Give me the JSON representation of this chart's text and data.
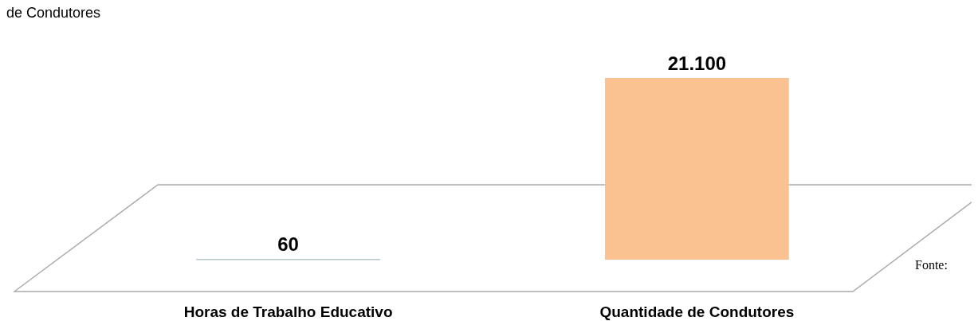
{
  "chart_data": {
    "type": "bar",
    "title": "de Condutores",
    "categories": [
      "Horas de Trabalho Educativo",
      "Quantidade de Condutores"
    ],
    "values": [
      60,
      21100
    ],
    "colors": [
      "#8eaab0",
      "#f9c290"
    ],
    "value_labels": [
      "60",
      "21.100"
    ],
    "annotations": [
      "Fonte: "
    ]
  }
}
